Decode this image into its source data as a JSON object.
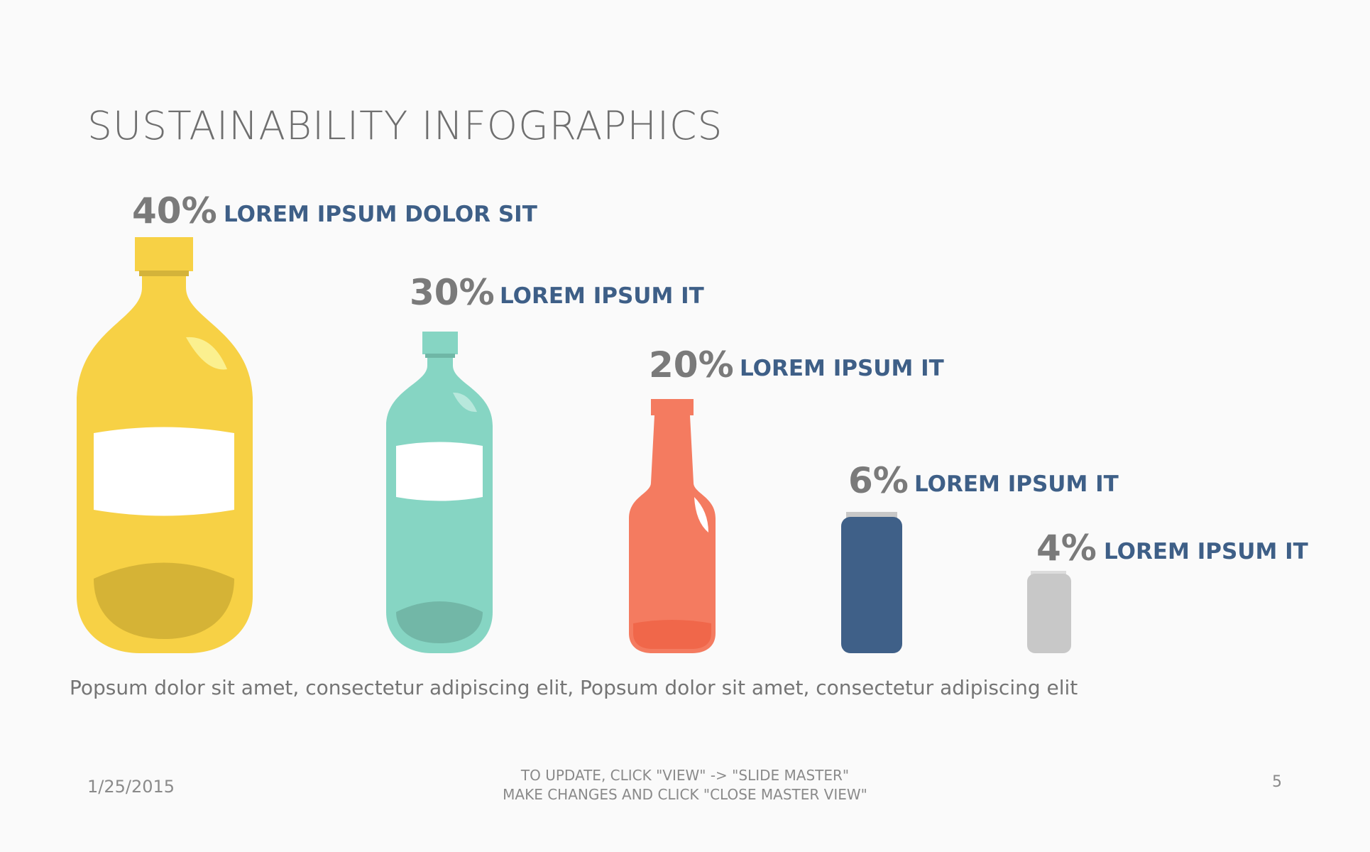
{
  "slide": {
    "title": "SUSTAINABILITY INFOGRAPHICS",
    "caption": "Popsum dolor sit amet, consectetur adipiscing elit, Popsum dolor sit amet, consectetur adipiscing elit",
    "footer": {
      "date": "1/25/2015",
      "note_line1": "TO UPDATE, CLICK \"VIEW\" -> \"SLIDE MASTER\"",
      "note_line2": "MAKE CHANGES AND CLICK \"CLOSE MASTER VIEW\"",
      "page_number": "5"
    }
  },
  "items": [
    {
      "percent": "40%",
      "label": "LOREM IPSUM  DOLOR SIT",
      "value": 40,
      "shape": "large-bottle",
      "color": "#f7d145"
    },
    {
      "percent": "30%",
      "label": "LOREM IPSUM IT",
      "value": 30,
      "shape": "medium-bottle",
      "color": "#86d5c3"
    },
    {
      "percent": "20%",
      "label": "LOREM IPSUM IT",
      "value": 20,
      "shape": "glass-bottle",
      "color": "#f47b60"
    },
    {
      "percent": "6%",
      "label": "LOREM IPSUM IT",
      "value": 6,
      "shape": "can",
      "color": "#3f6088"
    },
    {
      "percent": "4%",
      "label": "LOREM IPSUM IT",
      "value": 4,
      "shape": "small-can",
      "color": "#c8c8c8"
    }
  ]
}
